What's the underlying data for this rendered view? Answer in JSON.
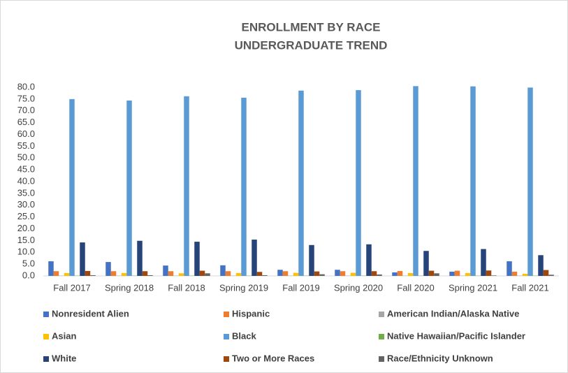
{
  "chart_data": {
    "type": "bar",
    "title": [
      "ENROLLMENT BY RACE",
      "UNDERGRADUATE TREND"
    ],
    "categories": [
      "Fall 2017",
      "Spring 2018",
      "Fall 2018",
      "Spring 2019",
      "Fall 2019",
      "Spring 2020",
      "Fall 2020",
      "Spring 2021",
      "Fall 2021"
    ],
    "series": [
      {
        "name": "Nonresident Alien",
        "color": "#4472c4",
        "values": [
          6.2,
          5.9,
          4.4,
          4.5,
          2.6,
          2.6,
          1.5,
          1.8,
          6.2
        ]
      },
      {
        "name": "Hispanic",
        "color": "#ed7d31",
        "values": [
          2.0,
          2.0,
          2.0,
          2.0,
          2.0,
          2.0,
          2.1,
          2.2,
          1.8
        ]
      },
      {
        "name": "American Indian/Alaska Native",
        "color": "#a5a5a5",
        "values": [
          0.1,
          0.1,
          0.1,
          0.1,
          0.1,
          0.1,
          0.1,
          0.1,
          0.1
        ]
      },
      {
        "name": "Asian",
        "color": "#ffc000",
        "values": [
          1.2,
          1.2,
          1.1,
          1.2,
          1.3,
          1.3,
          1.2,
          1.2,
          0.9
        ]
      },
      {
        "name": "Black",
        "color": "#5b9bd5",
        "values": [
          75.0,
          74.4,
          76.2,
          75.6,
          78.6,
          78.8,
          80.5,
          80.4,
          79.9
        ]
      },
      {
        "name": "Native Hawaiian/Pacific Islander",
        "color": "#70ad47",
        "values": [
          0.1,
          0.1,
          0.1,
          0.1,
          0.1,
          0.1,
          0.1,
          0.1,
          0.1
        ]
      },
      {
        "name": "White",
        "color": "#264478",
        "values": [
          14.2,
          14.9,
          14.5,
          15.4,
          13.1,
          13.4,
          10.6,
          11.4,
          8.8
        ]
      },
      {
        "name": "Two or More Races",
        "color": "#9e480e",
        "values": [
          2.1,
          2.0,
          2.2,
          1.7,
          1.9,
          2.0,
          2.2,
          2.3,
          2.5
        ]
      },
      {
        "name": "Race/Ethnicity Unknown",
        "color": "#636363",
        "values": [
          0.3,
          0.3,
          1.1,
          0.3,
          0.7,
          0.6,
          1.1,
          0.2,
          0.5
        ]
      }
    ],
    "ylim": [
      0,
      80
    ],
    "yticks": [
      {
        "value": 0,
        "label": "0.0"
      },
      {
        "value": 5,
        "label": "5.0"
      },
      {
        "value": 10,
        "label": "10.0"
      },
      {
        "value": 15,
        "label": "15.0"
      },
      {
        "value": 20,
        "label": "20.0"
      },
      {
        "value": 25,
        "label": "25.0"
      },
      {
        "value": 30,
        "label": "30.0"
      },
      {
        "value": 35,
        "label": "35.0"
      },
      {
        "value": 40,
        "label": "40.0"
      },
      {
        "value": 45,
        "label": "45.0"
      },
      {
        "value": 50,
        "label": "50.0"
      },
      {
        "value": 55,
        "label": "55.0"
      },
      {
        "value": 60,
        "label": "60.0"
      },
      {
        "value": 65,
        "label": "65.0"
      },
      {
        "value": 70,
        "label": "70.0"
      },
      {
        "value": 75,
        "label": "75.0"
      },
      {
        "value": 80,
        "label": "80.0"
      }
    ],
    "grid": false,
    "legend": "bottom"
  }
}
